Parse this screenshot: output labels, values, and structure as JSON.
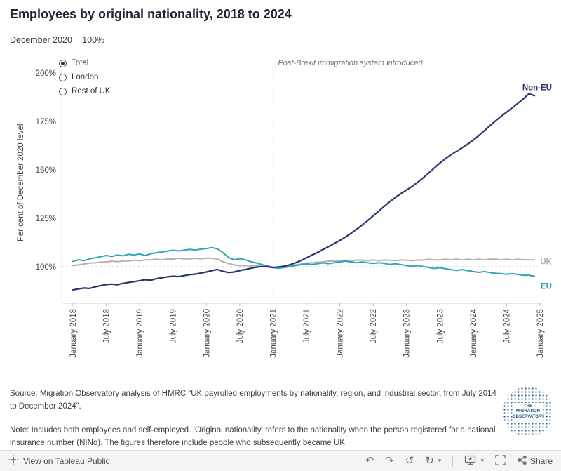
{
  "header": {
    "title": "Employees by original nationality, 2018 to 2024",
    "subtitle": "December 2020 = 100%"
  },
  "controls": {
    "options": [
      {
        "label": "Total",
        "selected": true
      },
      {
        "label": "London",
        "selected": false
      },
      {
        "label": "Rest of UK",
        "selected": false
      }
    ]
  },
  "chart_data": {
    "type": "line",
    "title": "Employees by original nationality, 2018 to 2024",
    "subtitle": "December 2020 = 100%",
    "ylabel": "Per cent of December 2020 level",
    "y_ticks": [
      "100%",
      "125%",
      "150%",
      "175%",
      "200%"
    ],
    "ylim": [
      80,
      210
    ],
    "x_ticks": [
      "January 2018",
      "July 2018",
      "January 2019",
      "July 2019",
      "January 2020",
      "July 2020",
      "January 2021",
      "July 2021",
      "January 2022",
      "July 2022",
      "January 2023",
      "July 2023",
      "January 2024",
      "July 2024",
      "January 2025"
    ],
    "x_start": "January 2018",
    "x_end_data": "December 2024",
    "annotation": {
      "text": "Post-Brexit immigration system introduced",
      "at_x_tick": "January 2021"
    },
    "reference_lines": {
      "horizontal_value": 100,
      "vertical_at": "January 2021"
    },
    "legend_position": "line-end-labels",
    "grid": false,
    "series": [
      {
        "name": "UK",
        "color": "#b7b1a8",
        "values": [
          100.6,
          101.0,
          101.4,
          101.9,
          102.0,
          102.4,
          102.5,
          102.9,
          102.6,
          103.0,
          103.0,
          103.4,
          103.1,
          103.5,
          103.5,
          103.9,
          103.6,
          104.0,
          104.0,
          104.4,
          104.1,
          104.1,
          104.4,
          104.1,
          104.5,
          104.4,
          104.0,
          102.6,
          101.6,
          101.0,
          100.6,
          100.6,
          100.5,
          100.4,
          100.1,
          100.0,
          99.6,
          99.7,
          100.0,
          100.4,
          100.9,
          101.4,
          101.9,
          102.0,
          102.4,
          102.5,
          102.9,
          102.9,
          103.0,
          103.4,
          103.0,
          103.4,
          103.5,
          103.1,
          103.5,
          103.1,
          103.5,
          103.4,
          103.1,
          103.5,
          103.4,
          103.1,
          103.5,
          103.4,
          103.9,
          103.5,
          103.5,
          103.9,
          103.5,
          103.9,
          103.5,
          103.9,
          103.5,
          103.9,
          103.5,
          103.9,
          103.9,
          103.5,
          103.9,
          103.5,
          103.9,
          103.6,
          103.6,
          103.5
        ]
      },
      {
        "name": "EU",
        "color": "#2fa3ba",
        "values": [
          102.8,
          103.6,
          103.2,
          104.1,
          104.6,
          105.2,
          105.8,
          105.3,
          106.0,
          105.6,
          106.4,
          106.1,
          106.6,
          105.8,
          106.7,
          107.2,
          107.6,
          108.1,
          108.5,
          108.1,
          108.6,
          109.0,
          108.6,
          109.1,
          109.4,
          109.9,
          109.2,
          107.2,
          104.8,
          103.6,
          104.2,
          103.6,
          102.6,
          102.0,
          101.1,
          100.4,
          99.6,
          99.2,
          99.6,
          100.1,
          100.6,
          101.1,
          101.5,
          101.1,
          101.6,
          102.0,
          101.6,
          102.1,
          102.5,
          102.9,
          102.5,
          102.1,
          102.5,
          102.1,
          101.7,
          102.1,
          101.7,
          101.2,
          101.6,
          101.1,
          100.6,
          100.2,
          100.6,
          100.1,
          99.6,
          99.1,
          99.5,
          99.0,
          98.5,
          98.1,
          98.5,
          98.0,
          97.5,
          97.1,
          97.5,
          97.0,
          96.6,
          96.5,
          96.1,
          96.4,
          96.0,
          95.6,
          95.6,
          95.1
        ]
      },
      {
        "name": "Non-EU",
        "color": "#26356e",
        "values": [
          88.0,
          88.6,
          89.0,
          88.8,
          89.6,
          90.2,
          90.8,
          91.0,
          90.7,
          91.4,
          91.9,
          92.3,
          92.8,
          93.3,
          93.0,
          93.8,
          94.3,
          94.8,
          95.1,
          94.9,
          95.4,
          95.9,
          96.2,
          96.7,
          97.3,
          98.0,
          98.6,
          97.6,
          97.0,
          97.3,
          98.0,
          98.6,
          99.2,
          99.8,
          100.1,
          100.0,
          99.6,
          99.9,
          100.3,
          101.0,
          102.0,
          103.2,
          104.6,
          106.0,
          107.4,
          108.9,
          110.4,
          112.0,
          113.6,
          115.3,
          117.2,
          119.3,
          121.5,
          123.8,
          126.2,
          128.7,
          131.2,
          133.6,
          135.8,
          137.8,
          139.6,
          141.5,
          143.6,
          145.9,
          148.4,
          151.0,
          153.5,
          155.8,
          157.8,
          159.6,
          161.4,
          163.3,
          165.4,
          167.7,
          170.2,
          172.8,
          175.3,
          177.6,
          179.8,
          182.0,
          184.3,
          186.6,
          189.3,
          188.3
        ]
      }
    ]
  },
  "footer": {
    "source": "Source: Migration Observatory analysis of HMRC “UK payrolled employments by nationality, region, and industrial sector, from July 2014 to December 2024”.",
    "note": "Note: Includes both employees and self-employed. ‘Original nationality’ refers to the nationality when the person registered for a national insurance number (NINo). The figures therefore include people who subsequently became UK"
  },
  "logo": {
    "text": "THE MIGRATION OBSERVATORY"
  },
  "toolbar": {
    "view_label": "View on Tableau Public",
    "share_label": "Share"
  },
  "icons": {
    "undo": "↶",
    "redo": "↷",
    "reset": "↺",
    "refresh": "↻",
    "caret": "▾",
    "download": "monitor-with-arrow",
    "fullscreen": "corner-brackets",
    "share": "share-nodes",
    "tableau": "tableau-mark"
  }
}
